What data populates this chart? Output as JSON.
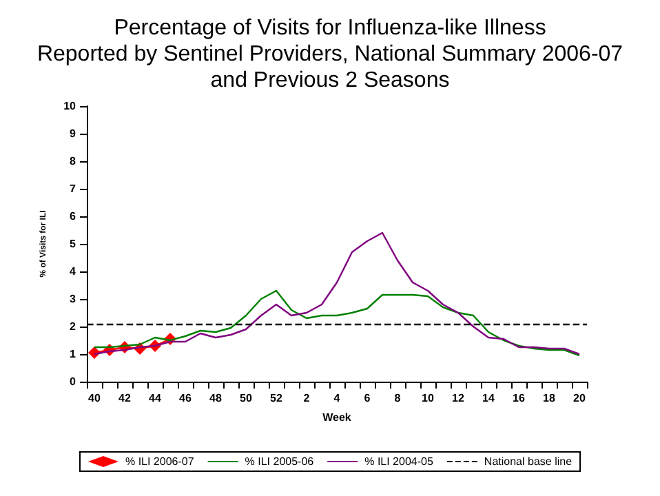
{
  "chart_data": {
    "type": "line",
    "title": "Percentage of Visits for Influenza-like Illness\nReported by Sentinel Providers, National Summary 2006-07\nand Previous 2 Seasons",
    "xlabel": "Week",
    "ylabel": "% of Visits for ILI",
    "categories": [
      "40",
      null,
      "42",
      null,
      "44",
      null,
      "46",
      null,
      "48",
      null,
      "50",
      null,
      "52",
      null,
      "2",
      null,
      "4",
      null,
      "6",
      null,
      "8",
      null,
      "10",
      null,
      "12",
      null,
      "14",
      null,
      "16",
      null,
      "18",
      null,
      "20"
    ],
    "series": [
      {
        "name": "% ILI 2006-07",
        "color": "#ff0000",
        "marker": "diamond",
        "values": [
          1.05,
          1.15,
          1.25,
          1.2,
          1.3,
          1.55,
          null,
          null,
          null,
          null,
          null,
          null,
          null,
          null,
          null,
          null,
          null,
          null,
          null,
          null,
          null,
          null,
          null,
          null,
          null,
          null,
          null,
          null,
          null,
          null,
          null,
          null,
          null
        ]
      },
      {
        "name": "% ILI 2005-06",
        "color": "#008000",
        "marker": "none",
        "values": [
          1.25,
          1.25,
          1.3,
          1.35,
          1.6,
          1.5,
          1.65,
          1.85,
          1.8,
          1.95,
          2.4,
          3.0,
          3.3,
          2.6,
          2.3,
          2.4,
          2.4,
          2.5,
          2.65,
          3.15,
          3.15,
          3.15,
          3.1,
          2.7,
          2.5,
          2.4,
          1.8,
          1.5,
          1.3,
          1.2,
          1.15,
          1.15,
          0.95
        ]
      },
      {
        "name": "% ILI 2004-05",
        "color": "#800080",
        "marker": "none",
        "values": [
          1.0,
          1.1,
          1.15,
          1.25,
          1.3,
          1.45,
          1.45,
          1.75,
          1.6,
          1.7,
          1.9,
          2.4,
          2.8,
          2.4,
          2.5,
          2.8,
          3.6,
          4.7,
          5.1,
          5.4,
          4.4,
          3.6,
          3.3,
          2.8,
          2.5,
          2.0,
          1.6,
          1.55,
          1.25,
          1.25,
          1.2,
          1.2,
          1.0
        ]
      }
    ],
    "ref_lines": [
      {
        "axis": "y",
        "value": 2.1,
        "label": "National base line",
        "color": "#000000",
        "line_style": "dashed"
      }
    ],
    "ylim": [
      0,
      10
    ],
    "yticks": [
      0,
      1,
      2,
      3,
      4,
      5,
      6,
      7,
      8,
      9,
      10
    ],
    "grid": false,
    "legend": "bottom"
  }
}
